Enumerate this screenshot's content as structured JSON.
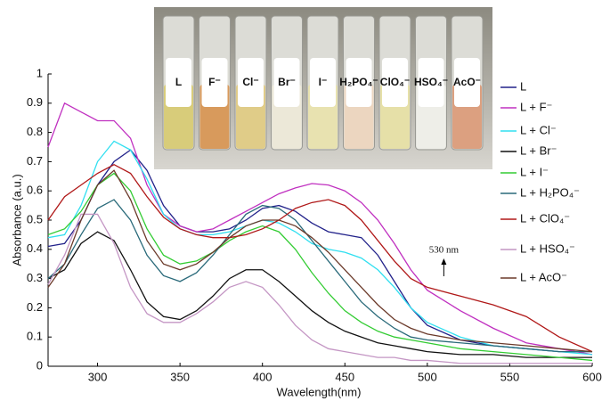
{
  "chart_data": {
    "type": "line",
    "xlabel": "Wavelength(nm)",
    "ylabel": "Absorbance (a.u.)",
    "x": [
      270,
      280,
      290,
      300,
      310,
      320,
      330,
      340,
      350,
      360,
      370,
      380,
      390,
      400,
      410,
      420,
      430,
      440,
      450,
      460,
      470,
      480,
      490,
      500,
      520,
      540,
      560,
      580,
      600
    ],
    "xlim": [
      270,
      600
    ],
    "xticks": [
      300,
      350,
      400,
      450,
      500,
      550,
      600
    ],
    "ylim": [
      0,
      1
    ],
    "yticks": [
      0,
      0.1,
      0.2,
      0.3,
      0.4,
      0.5,
      0.6,
      0.7,
      0.8,
      0.9,
      1
    ],
    "grid": false,
    "legend": "right",
    "annotation": {
      "text": "530 nm",
      "x": 510
    },
    "series": [
      {
        "name": "L",
        "color": "#22228a",
        "values": [
          0.41,
          0.42,
          0.5,
          0.62,
          0.7,
          0.74,
          0.67,
          0.55,
          0.48,
          0.46,
          0.46,
          0.47,
          0.5,
          0.54,
          0.55,
          0.53,
          0.49,
          0.46,
          0.45,
          0.44,
          0.38,
          0.29,
          0.2,
          0.14,
          0.09,
          0.07,
          0.06,
          0.05,
          0.05
        ]
      },
      {
        "name": "L + F⁻",
        "color": "#c030c0",
        "values": [
          0.75,
          0.9,
          0.87,
          0.84,
          0.84,
          0.78,
          0.62,
          0.52,
          0.48,
          0.46,
          0.47,
          0.5,
          0.53,
          0.56,
          0.59,
          0.61,
          0.625,
          0.62,
          0.6,
          0.56,
          0.5,
          0.42,
          0.33,
          0.26,
          0.19,
          0.13,
          0.08,
          0.06,
          0.04
        ]
      },
      {
        "name": "L + Cl⁻",
        "color": "#30dff0",
        "values": [
          0.44,
          0.45,
          0.55,
          0.7,
          0.77,
          0.74,
          0.64,
          0.52,
          0.47,
          0.45,
          0.45,
          0.46,
          0.48,
          0.5,
          0.49,
          0.46,
          0.42,
          0.4,
          0.39,
          0.37,
          0.33,
          0.27,
          0.2,
          0.15,
          0.1,
          0.07,
          0.06,
          0.05,
          0.04
        ]
      },
      {
        "name": "L + Br⁻",
        "color": "#111111",
        "values": [
          0.3,
          0.33,
          0.42,
          0.46,
          0.43,
          0.33,
          0.22,
          0.17,
          0.16,
          0.19,
          0.24,
          0.3,
          0.33,
          0.33,
          0.29,
          0.24,
          0.19,
          0.15,
          0.12,
          0.1,
          0.08,
          0.07,
          0.06,
          0.05,
          0.04,
          0.04,
          0.03,
          0.03,
          0.03
        ]
      },
      {
        "name": "L + I⁻",
        "color": "#33cc33",
        "values": [
          0.45,
          0.47,
          0.53,
          0.62,
          0.66,
          0.6,
          0.47,
          0.38,
          0.35,
          0.36,
          0.39,
          0.43,
          0.46,
          0.48,
          0.46,
          0.4,
          0.32,
          0.25,
          0.19,
          0.15,
          0.12,
          0.1,
          0.09,
          0.08,
          0.06,
          0.05,
          0.04,
          0.03,
          0.02
        ]
      },
      {
        "name": "L + H₂PO₄⁻",
        "color": "#2a6a7a",
        "values": [
          0.3,
          0.35,
          0.45,
          0.54,
          0.57,
          0.5,
          0.38,
          0.31,
          0.29,
          0.32,
          0.38,
          0.45,
          0.52,
          0.55,
          0.54,
          0.5,
          0.43,
          0.36,
          0.29,
          0.22,
          0.17,
          0.13,
          0.1,
          0.09,
          0.08,
          0.07,
          0.06,
          0.05,
          0.05
        ]
      },
      {
        "name": "L + ClO₄⁻",
        "color": "#b01818",
        "values": [
          0.5,
          0.58,
          0.62,
          0.66,
          0.69,
          0.66,
          0.58,
          0.51,
          0.47,
          0.45,
          0.44,
          0.44,
          0.45,
          0.47,
          0.5,
          0.54,
          0.56,
          0.57,
          0.55,
          0.5,
          0.43,
          0.36,
          0.3,
          0.27,
          0.24,
          0.21,
          0.17,
          0.1,
          0.05
        ]
      },
      {
        "name": "L + HSO₄⁻",
        "color": "#c496c4",
        "values": [
          0.28,
          0.38,
          0.52,
          0.52,
          0.42,
          0.27,
          0.18,
          0.15,
          0.15,
          0.18,
          0.22,
          0.27,
          0.29,
          0.27,
          0.21,
          0.14,
          0.09,
          0.06,
          0.05,
          0.04,
          0.03,
          0.03,
          0.02,
          0.02,
          0.01,
          0.01,
          0.01,
          0.01,
          0.01
        ]
      },
      {
        "name": "L + AcO⁻",
        "color": "#6b3a2a",
        "values": [
          0.27,
          0.35,
          0.5,
          0.62,
          0.67,
          0.57,
          0.43,
          0.35,
          0.33,
          0.35,
          0.39,
          0.44,
          0.48,
          0.5,
          0.5,
          0.48,
          0.44,
          0.39,
          0.33,
          0.27,
          0.21,
          0.16,
          0.13,
          0.11,
          0.09,
          0.08,
          0.07,
          0.06,
          0.05
        ]
      }
    ]
  },
  "inset_labels": [
    "L",
    "F⁻",
    "Cl⁻",
    "Br⁻",
    "I⁻",
    "H₂PO₄⁻",
    "ClO₄⁻",
    "HSO₄⁻",
    "AcO⁻"
  ]
}
